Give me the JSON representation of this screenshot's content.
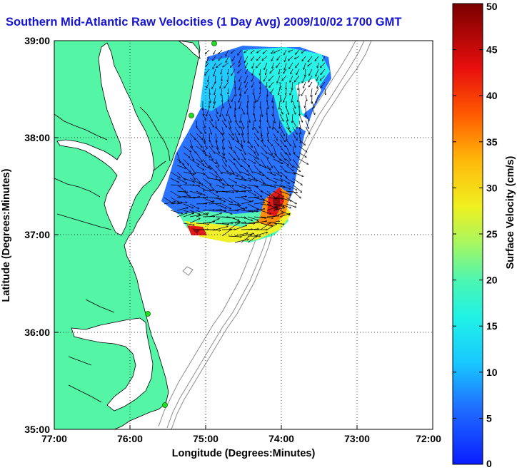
{
  "title": "Southern Mid-Atlantic Raw Velocities (1 Day Avg) 2009/10/02 1700 GMT",
  "xlabel": "Longitude (Degrees:Minutes)",
  "ylabel": "Latitude (Degrees:Minutes)",
  "colorbar_label": "Surface Velocity (cm/s)",
  "x_ticks": [
    "77:00",
    "76:00",
    "75:00",
    "74:00",
    "73:00",
    "72:00"
  ],
  "y_ticks": [
    "39:00",
    "38:00",
    "37:00",
    "36:00",
    "35:00"
  ],
  "colorbar_ticks": [
    "0",
    "5",
    "10",
    "15",
    "20",
    "25",
    "30",
    "35",
    "40",
    "45",
    "50"
  ],
  "colorbar_range": [
    0,
    50
  ],
  "lon_range": [
    -77,
    -72
  ],
  "lat_range": [
    35,
    39
  ],
  "colors": {
    "land": "#55f5a6",
    "sea": "#ffffff",
    "title": "#1414d2",
    "bathymetry": "#8c8c8c",
    "station": "#22dd22"
  }
}
